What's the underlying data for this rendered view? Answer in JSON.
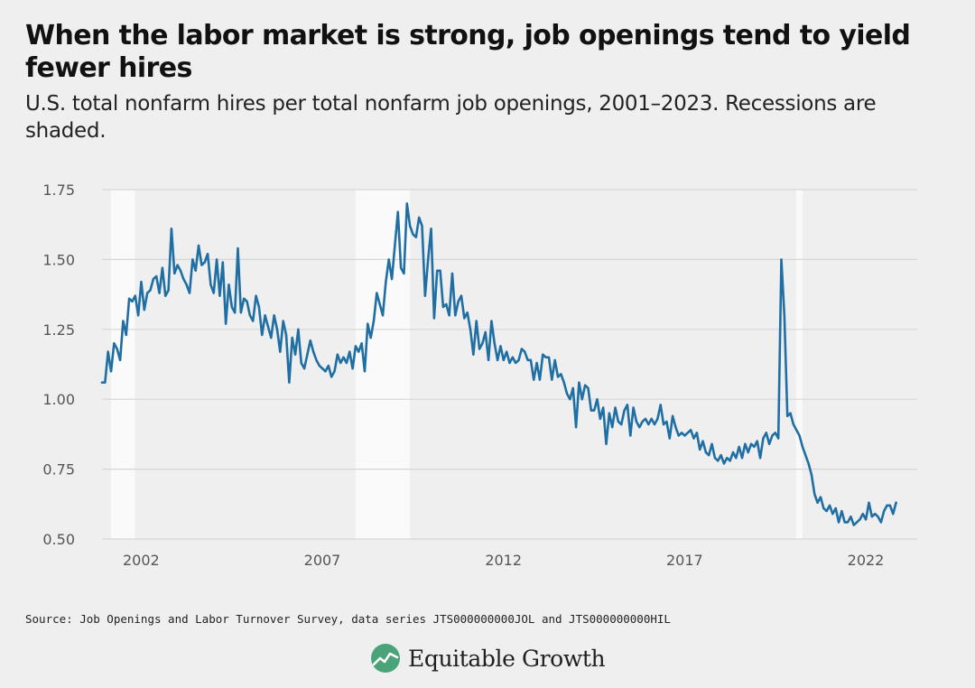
{
  "title": "When the labor market is strong, job openings tend to yield fewer hires",
  "subtitle": "U.S. total nonfarm hires per total nonfarm job openings, 2001–2023. Recessions are shaded.",
  "source": "Source: Job Openings and Labor Turnover Survey, data series JTS000000000JOL and JTS000000000HIL",
  "brand": {
    "name": "Equitable Growth",
    "logo_icon": "equitable-growth-chart-leaf-icon",
    "logo_color": "#4aa379"
  },
  "colors": {
    "line": "#1f6ea4",
    "recession": "#fafafa",
    "grid": "#d6d6d6",
    "background": "#efefef"
  },
  "chart_data": {
    "type": "line",
    "title": "",
    "xlabel": "",
    "ylabel": "",
    "x_unit": "year",
    "xlim": [
      2000.92,
      2023.42
    ],
    "ylim": [
      0.5,
      1.75
    ],
    "xticks": [
      2002,
      2007,
      2012,
      2017,
      2022
    ],
    "xtick_labels": [
      "2002",
      "2007",
      "2012",
      "2017",
      "2022"
    ],
    "yticks": [
      0.5,
      0.75,
      1.0,
      1.25,
      1.5,
      1.75
    ],
    "ytick_labels": [
      "0.50",
      "0.75",
      "1.00",
      "1.25",
      "1.50",
      "1.75"
    ],
    "grid": true,
    "legend": "none",
    "recessions": [
      [
        2001.17,
        2001.83
      ],
      [
        2007.92,
        2009.42
      ],
      [
        2020.08,
        2020.25
      ]
    ],
    "series": [
      {
        "name": "",
        "x_start": 2000.92,
        "x_step": 0.0833333,
        "values": [
          1.06,
          1.06,
          1.17,
          1.1,
          1.2,
          1.18,
          1.14,
          1.28,
          1.23,
          1.36,
          1.35,
          1.37,
          1.3,
          1.42,
          1.32,
          1.38,
          1.39,
          1.43,
          1.44,
          1.38,
          1.47,
          1.37,
          1.39,
          1.61,
          1.45,
          1.48,
          1.46,
          1.43,
          1.41,
          1.38,
          1.5,
          1.46,
          1.55,
          1.48,
          1.49,
          1.52,
          1.41,
          1.38,
          1.5,
          1.37,
          1.49,
          1.27,
          1.41,
          1.33,
          1.31,
          1.54,
          1.31,
          1.36,
          1.35,
          1.3,
          1.28,
          1.37,
          1.33,
          1.23,
          1.3,
          1.26,
          1.22,
          1.3,
          1.25,
          1.17,
          1.28,
          1.23,
          1.06,
          1.22,
          1.16,
          1.25,
          1.13,
          1.11,
          1.16,
          1.21,
          1.17,
          1.14,
          1.12,
          1.11,
          1.1,
          1.12,
          1.08,
          1.1,
          1.16,
          1.13,
          1.15,
          1.13,
          1.17,
          1.11,
          1.19,
          1.17,
          1.2,
          1.1,
          1.27,
          1.22,
          1.28,
          1.38,
          1.34,
          1.3,
          1.42,
          1.5,
          1.43,
          1.55,
          1.67,
          1.47,
          1.45,
          1.7,
          1.62,
          1.59,
          1.58,
          1.65,
          1.62,
          1.37,
          1.5,
          1.61,
          1.29,
          1.46,
          1.46,
          1.33,
          1.34,
          1.3,
          1.45,
          1.3,
          1.35,
          1.37,
          1.29,
          1.31,
          1.25,
          1.16,
          1.28,
          1.18,
          1.2,
          1.24,
          1.14,
          1.28,
          1.2,
          1.14,
          1.19,
          1.14,
          1.17,
          1.13,
          1.15,
          1.13,
          1.14,
          1.18,
          1.17,
          1.14,
          1.14,
          1.07,
          1.13,
          1.07,
          1.16,
          1.15,
          1.15,
          1.07,
          1.14,
          1.08,
          1.09,
          1.06,
          1.02,
          1.0,
          1.04,
          0.9,
          1.06,
          1.0,
          1.05,
          1.04,
          0.96,
          0.96,
          1.0,
          0.93,
          0.97,
          0.84,
          0.95,
          0.9,
          0.97,
          0.92,
          0.91,
          0.96,
          0.98,
          0.87,
          0.97,
          0.92,
          0.9,
          0.92,
          0.93,
          0.91,
          0.93,
          0.91,
          0.93,
          0.98,
          0.91,
          0.92,
          0.86,
          0.94,
          0.9,
          0.87,
          0.88,
          0.87,
          0.88,
          0.89,
          0.86,
          0.88,
          0.82,
          0.85,
          0.81,
          0.8,
          0.84,
          0.79,
          0.78,
          0.8,
          0.77,
          0.79,
          0.78,
          0.81,
          0.79,
          0.83,
          0.79,
          0.84,
          0.81,
          0.84,
          0.83,
          0.85,
          0.79,
          0.86,
          0.88,
          0.84,
          0.87,
          0.88,
          0.86,
          1.5,
          1.3,
          0.94,
          0.95,
          0.91,
          0.89,
          0.87,
          0.83,
          0.8,
          0.77,
          0.73,
          0.66,
          0.63,
          0.65,
          0.61,
          0.6,
          0.62,
          0.59,
          0.61,
          0.56,
          0.6,
          0.56,
          0.56,
          0.58,
          0.55,
          0.56,
          0.57,
          0.59,
          0.57,
          0.63,
          0.58,
          0.59,
          0.58,
          0.56,
          0.6,
          0.62,
          0.62,
          0.59,
          0.63
        ]
      }
    ]
  }
}
